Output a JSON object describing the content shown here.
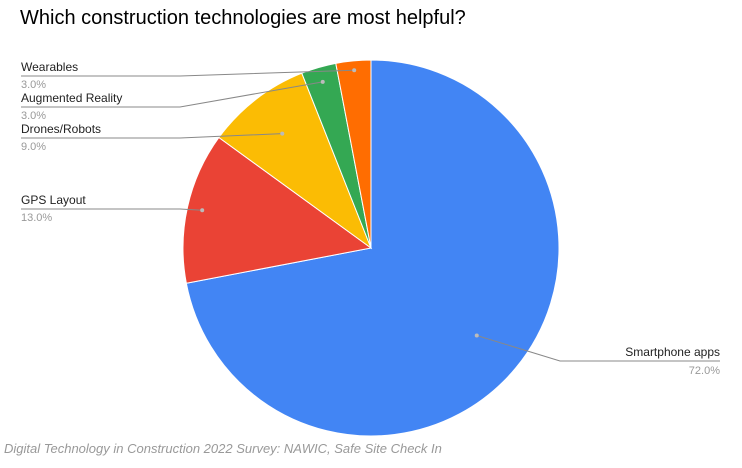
{
  "chart_data": {
    "type": "pie",
    "title": "Which construction technologies are most helpful?",
    "source": "Digital Technology in Construction 2022 Survey: NAWIC, Safe Site Check In",
    "slices": [
      {
        "label": "Smartphone apps",
        "value": 72.0,
        "value_label": "72.0%",
        "color": "#4285F4"
      },
      {
        "label": "GPS Layout",
        "value": 13.0,
        "value_label": "13.0%",
        "color": "#EA4335"
      },
      {
        "label": "Drones/Robots",
        "value": 9.0,
        "value_label": "9.0%",
        "color": "#FBBC04"
      },
      {
        "label": "Augmented Reality",
        "value": 3.0,
        "value_label": "3.0%",
        "color": "#34A853"
      },
      {
        "label": "Wearables",
        "value": 3.0,
        "value_label": "3.0%",
        "color": "#FF6D01"
      }
    ],
    "start_angle": "12 o'clock",
    "direction": "clockwise",
    "labels": "outside with leader lines"
  }
}
